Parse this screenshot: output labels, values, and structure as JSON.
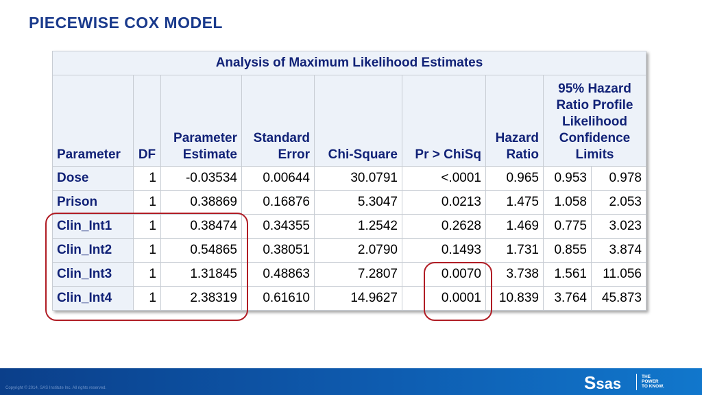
{
  "slide": {
    "title": "PIECEWISE COX MODEL"
  },
  "table": {
    "caption": "Analysis of Maximum Likelihood Estimates",
    "headers": {
      "parameter": "Parameter",
      "df": "DF",
      "estimate_l1": "Parameter",
      "estimate_l2": "Estimate",
      "se_l1": "Standard",
      "se_l2": "Error",
      "chisq": "Chi-Square",
      "p": "Pr > ChiSq",
      "hr_l1": "Hazard",
      "hr_l2": "Ratio",
      "ci_l1": "95% Hazard",
      "ci_l2": "Ratio Profile",
      "ci_l3": "Likelihood",
      "ci_l4": "Confidence",
      "ci_l5": "Limits"
    },
    "rows": [
      {
        "parameter": "Dose",
        "df": "1",
        "estimate": "-0.03534",
        "se": "0.00644",
        "chisq": "30.0791",
        "p": "<.0001",
        "hr": "0.965",
        "lower": "0.953",
        "upper": "0.978"
      },
      {
        "parameter": "Prison",
        "df": "1",
        "estimate": "0.38869",
        "se": "0.16876",
        "chisq": "5.3047",
        "p": "0.0213",
        "hr": "1.475",
        "lower": "1.058",
        "upper": "2.053"
      },
      {
        "parameter": "Clin_Int1",
        "df": "1",
        "estimate": "0.38474",
        "se": "0.34355",
        "chisq": "1.2542",
        "p": "0.2628",
        "hr": "1.469",
        "lower": "0.775",
        "upper": "3.023"
      },
      {
        "parameter": "Clin_Int2",
        "df": "1",
        "estimate": "0.54865",
        "se": "0.38051",
        "chisq": "2.0790",
        "p": "0.1493",
        "hr": "1.731",
        "lower": "0.855",
        "upper": "3.874"
      },
      {
        "parameter": "Clin_Int3",
        "df": "1",
        "estimate": "1.31845",
        "se": "0.48863",
        "chisq": "7.2807",
        "p": "0.0070",
        "hr": "3.738",
        "lower": "1.561",
        "upper": "11.056"
      },
      {
        "parameter": "Clin_Int4",
        "df": "1",
        "estimate": "2.38319",
        "se": "0.61610",
        "chisq": "14.9627",
        "p": "0.0001",
        "hr": "10.839",
        "lower": "3.764",
        "upper": "45.873"
      }
    ]
  },
  "footer": {
    "copyright": "Copyright © 2014, SAS Institute Inc. All rights reserved.",
    "logo_text": "sas",
    "logo_mark": "S",
    "tagline_1": "THE",
    "tagline_2": "POWER",
    "tagline_3": "TO KNOW."
  },
  "colors": {
    "title": "#1a3a8c",
    "header_bg": "#edf2f9",
    "header_text": "#112277",
    "highlight": "#b01c24",
    "footer": "#0e5cb0"
  }
}
